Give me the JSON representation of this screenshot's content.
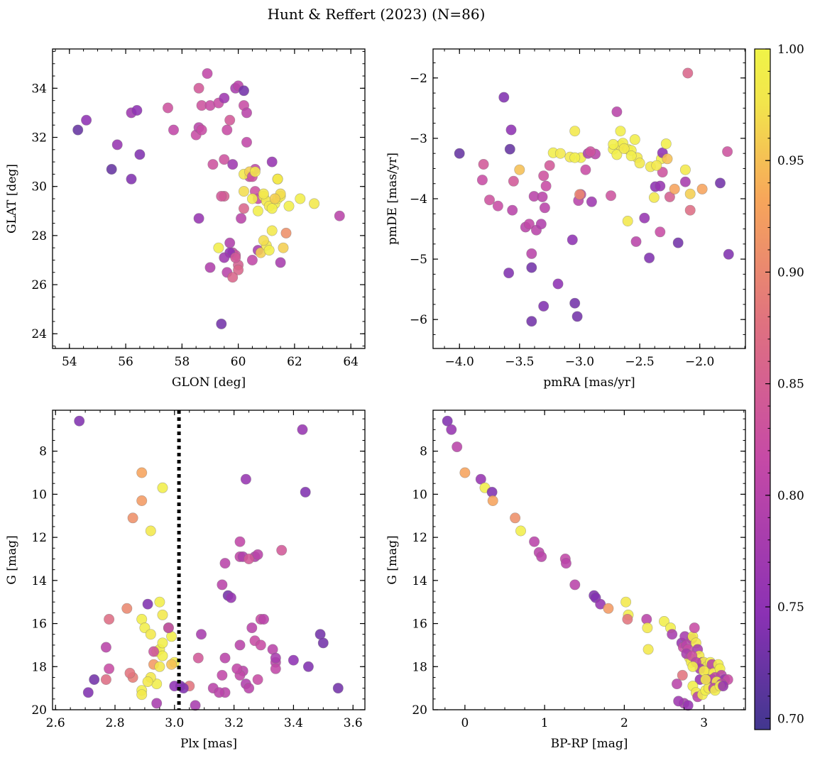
{
  "title": "Hunt & Reffert (2023) (N=86)",
  "colorbar": {
    "range": [
      0.695,
      1.0
    ],
    "ticks": [
      0.7,
      0.75,
      0.8,
      0.85,
      0.9,
      0.95,
      1.0
    ],
    "tick_labels": [
      "0.70",
      "0.75",
      "0.80",
      "0.85",
      "0.90",
      "0.95",
      "1.00"
    ],
    "colormap": "plasma-truncated",
    "colors": [
      "#41378f",
      "#8b31b4",
      "#c64aa6",
      "#e0727f",
      "#f7a65a",
      "#f2e54c",
      "#f0f448"
    ]
  },
  "chart_data": [
    {
      "type": "scatter",
      "id": "sky",
      "xlabel": "GLON [deg]",
      "ylabel": "GLAT [deg]",
      "xlim": [
        53.4,
        64.5
      ],
      "ylim": [
        23.4,
        35.6
      ],
      "xticks": [
        54,
        56,
        58,
        60,
        62,
        64
      ],
      "yticks": [
        24,
        26,
        28,
        30,
        32,
        34
      ],
      "xtick_labels": [
        "54",
        "56",
        "58",
        "60",
        "62",
        "64"
      ],
      "ytick_labels": [
        "24",
        "26",
        "28",
        "30",
        "32",
        "34"
      ],
      "x": [
        54.3,
        54.6,
        55.5,
        55.7,
        56.2,
        56.2,
        56.4,
        56.5,
        57.5,
        57.7,
        58.5,
        58.6,
        58.6,
        58.7,
        58.9,
        58.6,
        58.7,
        59.0,
        59.1,
        59.3,
        59.5,
        59.5,
        59.4,
        59.5,
        59.6,
        59.7,
        59.8,
        59.9,
        60.0,
        60.2,
        60.2,
        60.3,
        60.1,
        60.3,
        60.4,
        60.6,
        60.6,
        60.7,
        60.2,
        60.2,
        60.4,
        60.5,
        59.6,
        59.7,
        59.8,
        59.9,
        60.0,
        60.5,
        60.7,
        60.8,
        61.0,
        61.1,
        61.2,
        61.3,
        61.4,
        61.5,
        61.5,
        61.7,
        62.2,
        62.7,
        63.6,
        60.0,
        60.2,
        60.5,
        60.7,
        60.9,
        61.0,
        61.1,
        61.2,
        61.4,
        61.6,
        61.5,
        61.8,
        59.3,
        59.0,
        59.7,
        59.5,
        59.8,
        59.9,
        60.9,
        61.3,
        61.4,
        61.2,
        60.6,
        60.9,
        59.4
      ],
      "y": [
        32.3,
        32.7,
        30.7,
        31.7,
        33.0,
        30.3,
        33.1,
        31.3,
        33.2,
        32.3,
        32.1,
        32.4,
        34.0,
        33.3,
        34.6,
        28.7,
        32.3,
        33.3,
        30.9,
        33.4,
        33.6,
        29.6,
        29.6,
        31.1,
        32.3,
        32.7,
        30.9,
        34.0,
        34.1,
        33.9,
        33.3,
        33.0,
        28.7,
        31.8,
        30.4,
        30.7,
        29.8,
        29.5,
        29.1,
        30.5,
        30.6,
        30.4,
        26.5,
        27.7,
        27.3,
        27.2,
        26.8,
        27.0,
        27.4,
        27.3,
        27.6,
        27.4,
        28.2,
        29.3,
        29.5,
        29.6,
        29.7,
        28.1,
        29.5,
        29.3,
        28.8,
        26.6,
        29.8,
        29.5,
        29.0,
        29.6,
        29.4,
        29.2,
        29.1,
        30.3,
        27.5,
        26.9,
        29.2,
        27.5,
        26.7,
        27.3,
        27.1,
        26.3,
        27.1,
        29.7,
        29.5,
        30.3,
        31.0,
        30.6,
        27.8,
        24.4
      ],
      "c": [
        0.72,
        0.75,
        0.72,
        0.76,
        0.77,
        0.74,
        0.75,
        0.74,
        0.83,
        0.81,
        0.82,
        0.8,
        0.84,
        0.83,
        0.81,
        0.76,
        0.82,
        0.82,
        0.83,
        0.82,
        0.77,
        0.85,
        0.84,
        0.83,
        0.82,
        0.84,
        0.77,
        0.78,
        0.8,
        0.73,
        0.82,
        0.8,
        0.8,
        0.81,
        0.82,
        0.81,
        0.83,
        0.82,
        0.86,
        0.98,
        0.96,
        0.83,
        0.8,
        0.79,
        0.81,
        0.83,
        0.85,
        0.81,
        0.78,
        0.96,
        0.98,
        0.99,
        0.98,
        0.99,
        0.99,
        0.98,
        0.97,
        0.91,
        0.99,
        0.98,
        0.8,
        0.86,
        0.97,
        0.99,
        0.99,
        0.98,
        0.98,
        0.98,
        0.99,
        0.97,
        0.96,
        0.78,
        0.99,
        0.99,
        0.79,
        0.75,
        0.77,
        0.86,
        0.84,
        0.98,
        0.96,
        0.98,
        0.76,
        0.98,
        0.97,
        0.73
      ]
    },
    {
      "type": "scatter",
      "id": "pm",
      "xlabel": "pmRA [mas/yr]",
      "ylabel": "pmDE [mas/yr]",
      "xlim": [
        -4.22,
        -1.62
      ],
      "ylim": [
        -6.48,
        -1.52
      ],
      "xticks": [
        -4.0,
        -3.5,
        -3.0,
        -2.5,
        -2.0
      ],
      "yticks": [
        -6,
        -5,
        -4,
        -3,
        -2
      ],
      "xtick_labels": [
        "−4.0",
        "−3.5",
        "−3.0",
        "−2.5",
        "−2.0"
      ],
      "ytick_labels": [
        "−6",
        "−5",
        "−4",
        "−3",
        "−2"
      ],
      "x": [
        -4.0,
        -3.63,
        -3.57,
        -3.58,
        -3.81,
        -3.8,
        -3.75,
        -3.68,
        -3.55,
        -3.56,
        -3.45,
        -3.5,
        -3.42,
        -3.38,
        -3.36,
        -3.31,
        -3.32,
        -3.3,
        -3.28,
        -3.29,
        -3.25,
        -3.22,
        -3.18,
        -3.06,
        -3.04,
        -3.02,
        -3.01,
        -2.99,
        -2.99,
        -2.95,
        -2.93,
        -2.87,
        -2.91,
        -2.9,
        -2.74,
        -2.72,
        -2.69,
        -2.66,
        -2.64,
        -2.6,
        -2.57,
        -2.53,
        -2.52,
        -2.46,
        -2.42,
        -2.37,
        -2.33,
        -2.33,
        -2.31,
        -2.32,
        -2.25,
        -2.21,
        -2.18,
        -2.12,
        -2.1,
        -2.08,
        -2.08,
        -1.98,
        -1.83,
        -1.76,
        -1.77,
        -3.59,
        -3.4,
        -3.4,
        -3.3,
        -3.16,
        -3.08,
        -3.04,
        -3.04,
        -3.0,
        -3.4,
        -2.72,
        -2.69,
        -2.66,
        -2.63,
        -2.6,
        -2.57,
        -2.54,
        -2.5,
        -2.41,
        -2.38,
        -2.36,
        -2.31,
        -2.27,
        -2.12,
        -2.28
      ],
      "y": [
        -3.25,
        -2.32,
        -2.86,
        -3.18,
        -3.69,
        -3.43,
        -4.02,
        -4.12,
        -3.71,
        -4.19,
        -4.47,
        -3.52,
        -4.42,
        -3.96,
        -4.52,
        -3.97,
        -4.42,
        -3.62,
        -3.79,
        -4.15,
        -3.45,
        -3.24,
        -5.41,
        -4.68,
        -5.73,
        -5.95,
        -4.03,
        -3.93,
        -3.32,
        -3.52,
        -3.25,
        -3.26,
        -3.22,
        -4.05,
        -3.95,
        -3.18,
        -2.56,
        -3.12,
        -3.08,
        -3.18,
        -3.2,
        -4.71,
        -3.32,
        -4.32,
        -4.98,
        -3.8,
        -3.79,
        -4.55,
        -3.56,
        -3.34,
        -3.97,
        -3.84,
        -4.73,
        -3.72,
        -1.92,
        -3.92,
        -4.19,
        -3.84,
        -3.74,
        -4.92,
        -3.22,
        -5.23,
        -5.14,
        -6.03,
        -5.78,
        -3.25,
        -3.31,
        -2.88,
        -3.32,
        -3.93,
        -4.91,
        -3.1,
        -3.27,
        -2.88,
        -3.17,
        -4.37,
        -3.29,
        -3.02,
        -3.41,
        -3.47,
        -3.98,
        -3.45,
        -3.24,
        -3.34,
        -3.52,
        -3.09
      ],
      "c": [
        0.72,
        0.74,
        0.75,
        0.72,
        0.82,
        0.84,
        0.83,
        0.82,
        0.84,
        0.8,
        0.8,
        0.95,
        0.81,
        0.8,
        0.8,
        0.8,
        0.79,
        0.83,
        0.82,
        0.8,
        0.84,
        0.99,
        0.75,
        0.75,
        0.73,
        0.73,
        0.8,
        0.81,
        0.99,
        0.82,
        0.79,
        0.8,
        0.83,
        0.77,
        0.83,
        0.99,
        0.8,
        0.98,
        0.99,
        0.99,
        0.99,
        0.8,
        0.98,
        0.76,
        0.74,
        0.75,
        0.76,
        0.82,
        0.83,
        0.99,
        0.85,
        0.93,
        0.73,
        0.78,
        0.86,
        0.96,
        0.87,
        0.93,
        0.73,
        0.74,
        0.83,
        0.74,
        0.73,
        0.73,
        0.74,
        0.98,
        0.98,
        0.98,
        0.99,
        0.9,
        0.8,
        0.99,
        0.99,
        0.99,
        0.98,
        0.98,
        0.99,
        0.99,
        0.98,
        0.98,
        0.98,
        0.98,
        0.75,
        0.95,
        0.98,
        0.99
      ]
    },
    {
      "type": "scatter",
      "id": "plx",
      "xlabel": "Plx [mas]",
      "ylabel": "G [mag]",
      "xlim": [
        2.59,
        3.64
      ],
      "ylim": [
        20.0,
        6.1
      ],
      "y_inverted": true,
      "vline": 3.015,
      "xticks": [
        2.6,
        2.8,
        3.0,
        3.2,
        3.4,
        3.6
      ],
      "yticks": [
        8,
        10,
        12,
        14,
        16,
        18,
        20
      ],
      "xtick_labels": [
        "2.6",
        "2.8",
        "3.0",
        "3.2",
        "3.4",
        "3.6"
      ],
      "ytick_labels": [
        "8",
        "10",
        "12",
        "14",
        "16",
        "18",
        "20"
      ],
      "x": [
        2.68,
        2.89,
        2.89,
        2.86,
        2.96,
        2.92,
        2.84,
        2.94,
        2.95,
        2.96,
        2.98,
        2.89,
        2.9,
        2.92,
        2.95,
        2.96,
        2.99,
        3.0,
        2.96,
        2.94,
        2.92,
        2.91,
        2.89,
        2.89,
        2.93,
        2.95,
        2.99,
        3.02,
        2.94,
        2.98,
        2.93,
        2.86,
        2.85,
        2.78,
        2.77,
        2.78,
        2.77,
        2.73,
        2.71,
        3.05,
        3.0,
        3.03,
        3.07,
        3.09,
        3.08,
        3.16,
        3.17,
        3.18,
        3.19,
        3.17,
        3.16,
        3.22,
        3.22,
        3.24,
        3.23,
        3.27,
        3.25,
        3.28,
        3.29,
        3.26,
        3.27,
        3.22,
        3.23,
        3.29,
        3.22,
        3.21,
        3.24,
        3.25,
        3.28,
        3.34,
        3.33,
        3.34,
        3.36,
        3.3,
        3.34,
        3.4,
        3.43,
        3.44,
        3.45,
        3.49,
        3.5,
        3.55,
        3.13,
        3.17,
        3.15,
        2.91
      ],
      "y": [
        6.6,
        9.0,
        10.3,
        11.1,
        9.7,
        11.7,
        15.3,
        17.3,
        15.0,
        15.6,
        16.2,
        15.8,
        16.2,
        16.5,
        17.2,
        17.5,
        16.6,
        17.8,
        16.9,
        18.8,
        18.5,
        18.7,
        19.1,
        19.3,
        17.9,
        18.0,
        17.9,
        18.9,
        19.7,
        16.2,
        17.3,
        18.5,
        18.3,
        15.8,
        17.1,
        18.1,
        18.6,
        18.6,
        19.2,
        18.9,
        18.9,
        19.0,
        19.8,
        16.5,
        17.6,
        14.2,
        13.2,
        14.7,
        14.8,
        17.6,
        18.4,
        12.2,
        12.9,
        9.3,
        12.9,
        12.9,
        13.0,
        12.8,
        15.8,
        16.2,
        16.8,
        17.0,
        18.2,
        17.0,
        18.4,
        18.1,
        18.8,
        19.0,
        18.6,
        17.8,
        17.2,
        17.6,
        12.6,
        15.8,
        18.1,
        17.7,
        7.0,
        9.9,
        18.0,
        16.5,
        16.9,
        19.0,
        19.0,
        19.2,
        19.2,
        15.1
      ],
      "c": [
        0.74,
        0.93,
        0.92,
        0.91,
        0.99,
        0.98,
        0.9,
        0.99,
        0.99,
        0.98,
        0.99,
        0.99,
        0.99,
        0.98,
        0.99,
        0.99,
        0.99,
        0.98,
        0.99,
        0.99,
        0.98,
        0.98,
        0.99,
        0.98,
        0.92,
        0.98,
        0.95,
        0.74,
        0.78,
        0.8,
        0.83,
        0.89,
        0.88,
        0.87,
        0.8,
        0.82,
        0.87,
        0.73,
        0.74,
        0.88,
        0.75,
        0.74,
        0.78,
        0.78,
        0.84,
        0.8,
        0.8,
        0.73,
        0.76,
        0.8,
        0.81,
        0.81,
        0.81,
        0.76,
        0.79,
        0.79,
        0.84,
        0.8,
        0.82,
        0.8,
        0.82,
        0.8,
        0.8,
        0.82,
        0.81,
        0.81,
        0.79,
        0.8,
        0.82,
        0.8,
        0.8,
        0.78,
        0.84,
        0.8,
        0.81,
        0.75,
        0.76,
        0.74,
        0.74,
        0.73,
        0.73,
        0.73,
        0.8,
        0.8,
        0.8,
        0.74
      ],
      "annotation": "dotted vertical line"
    },
    {
      "type": "scatter",
      "id": "cmd",
      "xlabel": "BP-RP [mag]",
      "ylabel": "G [mag]",
      "xlim": [
        -0.4,
        3.52
      ],
      "ylim": [
        20.0,
        6.1
      ],
      "y_inverted": true,
      "xticks": [
        0,
        1,
        2,
        3
      ],
      "yticks": [
        8,
        10,
        12,
        14,
        16,
        18,
        20
      ],
      "xtick_labels": [
        "0",
        "1",
        "2",
        "3"
      ],
      "ytick_labels": [
        "8",
        "10",
        "12",
        "14",
        "16",
        "18",
        "20"
      ],
      "x": [
        -0.22,
        -0.17,
        -0.1,
        0.0,
        0.2,
        0.25,
        0.34,
        0.35,
        0.63,
        0.7,
        0.87,
        0.93,
        0.96,
        1.26,
        1.27,
        1.38,
        1.62,
        1.64,
        1.7,
        1.8,
        2.02,
        2.05,
        2.04,
        2.28,
        2.29,
        2.3,
        2.5,
        2.58,
        2.6,
        2.72,
        2.74,
        2.76,
        2.78,
        2.8,
        2.82,
        2.84,
        2.85,
        2.86,
        2.88,
        2.9,
        2.92,
        2.94,
        2.95,
        2.96,
        2.98,
        3.0,
        3.02,
        3.04,
        3.06,
        3.08,
        3.1,
        3.12,
        3.14,
        3.16,
        3.18,
        3.2,
        3.22,
        3.24,
        3.26,
        3.3,
        2.78,
        2.66,
        2.73,
        2.85,
        2.9,
        2.95,
        3.0,
        3.04,
        3.1,
        3.16,
        3.22,
        2.75,
        2.8,
        2.68,
        2.86,
        2.9,
        2.92,
        2.98,
        3.02,
        3.06,
        3.12,
        3.02,
        3.14,
        3.2,
        3.24,
        2.86
      ],
      "y": [
        6.6,
        7.0,
        7.8,
        9.0,
        9.3,
        9.7,
        9.9,
        10.3,
        11.1,
        11.7,
        12.2,
        12.7,
        12.9,
        13.0,
        13.2,
        14.2,
        14.7,
        14.8,
        15.1,
        15.3,
        15.0,
        15.6,
        15.8,
        15.8,
        16.2,
        17.2,
        15.9,
        16.2,
        16.5,
        16.9,
        17.1,
        16.6,
        17.0,
        17.2,
        17.6,
        17.8,
        16.7,
        16.6,
        16.2,
        16.9,
        17.2,
        17.5,
        18.6,
        18.0,
        17.8,
        17.8,
        18.1,
        18.0,
        18.3,
        17.8,
        17.9,
        18.3,
        18.5,
        18.7,
        17.9,
        18.1,
        18.4,
        18.8,
        18.6,
        18.6,
        17.4,
        18.8,
        18.4,
        17.5,
        17.8,
        18.1,
        18.2,
        18.6,
        18.6,
        18.7,
        18.8,
        19.7,
        19.8,
        19.6,
        18.9,
        19.2,
        19.4,
        19.3,
        19.1,
        19.0,
        19.0,
        18.6,
        19.1,
        18.9,
        18.9,
        18.0
      ],
      "c": [
        0.74,
        0.76,
        0.8,
        0.93,
        0.76,
        0.99,
        0.74,
        0.93,
        0.91,
        0.99,
        0.8,
        0.8,
        0.8,
        0.81,
        0.8,
        0.8,
        0.74,
        0.74,
        0.76,
        0.92,
        0.98,
        0.99,
        0.88,
        0.8,
        0.98,
        0.98,
        0.99,
        0.99,
        0.78,
        0.76,
        0.82,
        0.78,
        0.8,
        0.82,
        0.99,
        0.98,
        0.8,
        0.99,
        0.82,
        0.98,
        0.78,
        0.98,
        0.76,
        0.98,
        0.8,
        0.99,
        0.78,
        0.99,
        0.99,
        0.99,
        0.8,
        0.98,
        0.81,
        0.76,
        0.99,
        0.99,
        0.8,
        0.99,
        0.76,
        0.82,
        0.78,
        0.8,
        0.88,
        0.82,
        0.8,
        0.78,
        0.98,
        0.76,
        0.8,
        0.98,
        0.8,
        0.78,
        0.76,
        0.77,
        0.99,
        0.98,
        0.8,
        0.99,
        0.99,
        0.98,
        0.8,
        0.98,
        0.99,
        0.99,
        0.76,
        0.99
      ]
    }
  ]
}
